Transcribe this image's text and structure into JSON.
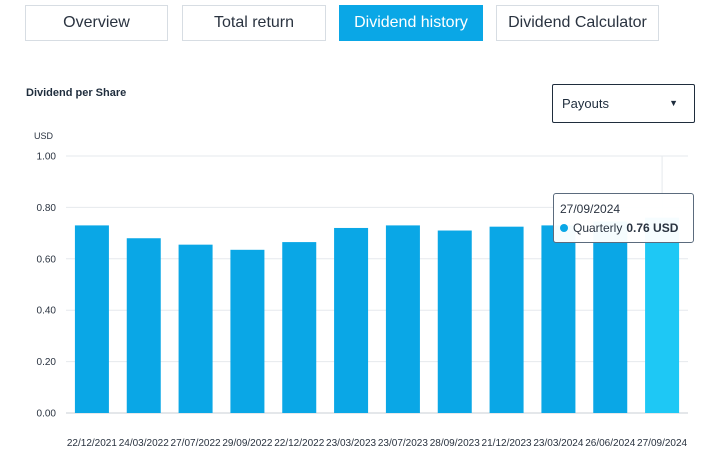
{
  "tabs": [
    {
      "label": "Overview",
      "active": false
    },
    {
      "label": "Total return",
      "active": false
    },
    {
      "label": "Dividend history",
      "active": true
    },
    {
      "label": "Dividend Calculator",
      "active": false
    }
  ],
  "section_title": "Dividend per Share",
  "select": {
    "value": "Payouts"
  },
  "colors": {
    "bar": "#0aa7e6",
    "bar_highlight": "#1ec8f5",
    "accent": "#0aa7e6"
  },
  "tooltip": {
    "date": "27/09/2024",
    "series": "Quarterly",
    "value": "0.76 USD"
  },
  "chart_data": {
    "type": "bar",
    "ylabel": "USD",
    "ylim": [
      0,
      1.0
    ],
    "yticks": [
      "0.00",
      "0.20",
      "0.40",
      "0.60",
      "0.80",
      "1.00"
    ],
    "grid": true,
    "categories": [
      "22/12/2021",
      "24/03/2022",
      "27/07/2022",
      "29/09/2022",
      "22/12/2022",
      "23/03/2023",
      "23/07/2023",
      "28/09/2023",
      "21/12/2023",
      "23/03/2024",
      "26/06/2024",
      "27/09/2024"
    ],
    "values": [
      0.73,
      0.68,
      0.655,
      0.635,
      0.665,
      0.72,
      0.73,
      0.71,
      0.725,
      0.73,
      0.745,
      0.76
    ],
    "highlight_index": 11
  }
}
